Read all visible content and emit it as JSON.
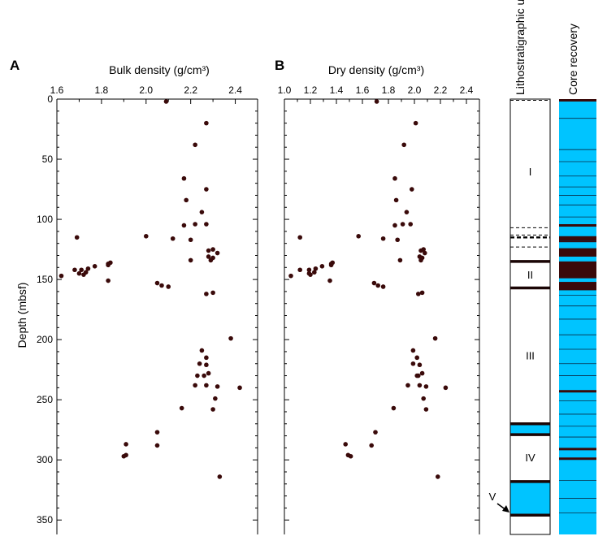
{
  "chart_data": [
    {
      "type": "scatter",
      "panel_label": "A",
      "xlabel": "Bulk density (g/cm³)",
      "ylabel": "Depth (mbsf)",
      "xlim": [
        1.6,
        2.5
      ],
      "ylim": [
        0,
        362
      ],
      "x_ticks": [
        "1.6",
        "1.8",
        "2.0",
        "2.2",
        "2.4"
      ],
      "x_tick_values": [
        1.6,
        1.8,
        2.0,
        2.2,
        2.4
      ],
      "y_ticks": [
        "0",
        "50",
        "100",
        "150",
        "200",
        "250",
        "300",
        "350"
      ],
      "y_tick_values": [
        0,
        50,
        100,
        150,
        200,
        250,
        300,
        350
      ],
      "x_axis_position": "top",
      "y_axis_inverted": true,
      "grid": false,
      "marker_color": "#3a0a0a",
      "points": [
        [
          2.09,
          2
        ],
        [
          2.27,
          20
        ],
        [
          2.22,
          38
        ],
        [
          2.17,
          66
        ],
        [
          2.27,
          75
        ],
        [
          2.18,
          84
        ],
        [
          2.25,
          94
        ],
        [
          2.17,
          105
        ],
        [
          2.22,
          104
        ],
        [
          2.27,
          104
        ],
        [
          2.2,
          117
        ],
        [
          2.12,
          116
        ],
        [
          2.0,
          114
        ],
        [
          1.69,
          115
        ],
        [
          2.28,
          126
        ],
        [
          2.3,
          125
        ],
        [
          2.32,
          128
        ],
        [
          2.28,
          131
        ],
        [
          2.3,
          132
        ],
        [
          2.29,
          134
        ],
        [
          2.2,
          134
        ],
        [
          1.83,
          137
        ],
        [
          1.84,
          136
        ],
        [
          1.83,
          138
        ],
        [
          1.77,
          139
        ],
        [
          1.74,
          141
        ],
        [
          1.71,
          142
        ],
        [
          1.68,
          142
        ],
        [
          1.73,
          144
        ],
        [
          1.7,
          145
        ],
        [
          1.72,
          146
        ],
        [
          1.62,
          147
        ],
        [
          1.83,
          151
        ],
        [
          2.05,
          153
        ],
        [
          2.07,
          155
        ],
        [
          2.1,
          156
        ],
        [
          2.3,
          161
        ],
        [
          2.27,
          162
        ],
        [
          2.38,
          199
        ],
        [
          2.25,
          209
        ],
        [
          2.27,
          215
        ],
        [
          2.24,
          220
        ],
        [
          2.27,
          221
        ],
        [
          2.23,
          230
        ],
        [
          2.28,
          228
        ],
        [
          2.26,
          230
        ],
        [
          2.22,
          238
        ],
        [
          2.27,
          238
        ],
        [
          2.32,
          239
        ],
        [
          2.42,
          240
        ],
        [
          2.31,
          249
        ],
        [
          2.16,
          257
        ],
        [
          2.3,
          258
        ],
        [
          2.05,
          277
        ],
        [
          1.91,
          287
        ],
        [
          2.05,
          288
        ],
        [
          1.91,
          296
        ],
        [
          1.9,
          297
        ],
        [
          2.33,
          314
        ]
      ]
    },
    {
      "type": "scatter",
      "panel_label": "B",
      "xlabel": "Dry density (g/cm³)",
      "ylabel": "",
      "xlim": [
        1.0,
        2.5
      ],
      "ylim": [
        0,
        362
      ],
      "x_ticks": [
        "1.0",
        "1.2",
        "1.4",
        "1.6",
        "1.8",
        "2.0",
        "2.2",
        "2.4"
      ],
      "x_tick_values": [
        1.0,
        1.2,
        1.4,
        1.6,
        1.8,
        2.0,
        2.2,
        2.4
      ],
      "y_ticks": [],
      "x_axis_position": "top",
      "y_axis_inverted": true,
      "grid": false,
      "marker_color": "#3a0a0a",
      "points": [
        [
          1.71,
          2
        ],
        [
          2.01,
          20
        ],
        [
          1.92,
          38
        ],
        [
          1.85,
          66
        ],
        [
          1.98,
          75
        ],
        [
          1.86,
          84
        ],
        [
          1.94,
          94
        ],
        [
          1.85,
          105
        ],
        [
          1.91,
          104
        ],
        [
          1.97,
          104
        ],
        [
          1.87,
          117
        ],
        [
          1.76,
          116
        ],
        [
          1.57,
          114
        ],
        [
          1.12,
          115
        ],
        [
          2.05,
          126
        ],
        [
          2.07,
          125
        ],
        [
          2.08,
          128
        ],
        [
          2.04,
          131
        ],
        [
          2.06,
          132
        ],
        [
          2.05,
          134
        ],
        [
          1.89,
          134
        ],
        [
          1.36,
          137
        ],
        [
          1.37,
          136
        ],
        [
          1.36,
          138
        ],
        [
          1.29,
          139
        ],
        [
          1.24,
          141
        ],
        [
          1.19,
          142
        ],
        [
          1.12,
          142
        ],
        [
          1.23,
          144
        ],
        [
          1.19,
          145
        ],
        [
          1.2,
          146
        ],
        [
          1.05,
          147
        ],
        [
          1.35,
          151
        ],
        [
          1.69,
          153
        ],
        [
          1.72,
          155
        ],
        [
          1.76,
          156
        ],
        [
          2.06,
          161
        ],
        [
          2.03,
          162
        ],
        [
          2.16,
          199
        ],
        [
          1.99,
          209
        ],
        [
          2.02,
          215
        ],
        [
          1.99,
          220
        ],
        [
          2.04,
          221
        ],
        [
          2.03,
          230
        ],
        [
          2.06,
          228
        ],
        [
          2.02,
          230
        ],
        [
          1.95,
          238
        ],
        [
          2.04,
          238
        ],
        [
          2.09,
          239
        ],
        [
          2.24,
          240
        ],
        [
          2.07,
          249
        ],
        [
          1.84,
          257
        ],
        [
          2.09,
          258
        ],
        [
          1.7,
          277
        ],
        [
          1.47,
          287
        ],
        [
          1.67,
          288
        ],
        [
          1.49,
          296
        ],
        [
          1.51,
          297
        ],
        [
          2.18,
          314
        ]
      ]
    },
    {
      "type": "column",
      "title": "Lithostratigraphic unit",
      "ylim": [
        0,
        362
      ],
      "units": [
        {
          "label": "I",
          "top": 0,
          "bottom": 107,
          "label_depth": 60
        },
        {
          "label": "II",
          "top": 135,
          "bottom": 157,
          "label_depth": 146
        },
        {
          "label": "III",
          "top": 157,
          "bottom": 270,
          "label_depth": 213
        },
        {
          "label": "IV",
          "top": 279,
          "bottom": 318,
          "label_depth": 298
        },
        {
          "label": "V",
          "top": 318,
          "bottom": 346,
          "label_depth": 335
        }
      ],
      "dashed_contacts": [
        1,
        107,
        113,
        123
      ],
      "heavy_dashed_contacts": [
        115
      ],
      "solid_contacts": [
        135,
        157,
        270,
        279,
        318,
        346
      ],
      "cyan_intervals": [
        [
          270,
          279
        ],
        [
          318,
          346
        ]
      ],
      "cyan_color": "#00c4ff"
    },
    {
      "type": "column",
      "title": "Core recovery",
      "ylim": [
        0,
        362
      ],
      "fill_color": "#00c4ff",
      "black_color": "#3a0a0a",
      "thin_lines": [
        16,
        42,
        52,
        64,
        73,
        80,
        88,
        98,
        118,
        163,
        172,
        183,
        196,
        208,
        220,
        230,
        251,
        262,
        272,
        281,
        299,
        317,
        332,
        344
      ],
      "thick_lines": [
        0,
        105,
        243,
        291,
        299
      ],
      "dark_intervals": [
        [
          114,
          119
        ],
        [
          124,
          131
        ],
        [
          135,
          149
        ],
        [
          152,
          159
        ]
      ]
    }
  ]
}
